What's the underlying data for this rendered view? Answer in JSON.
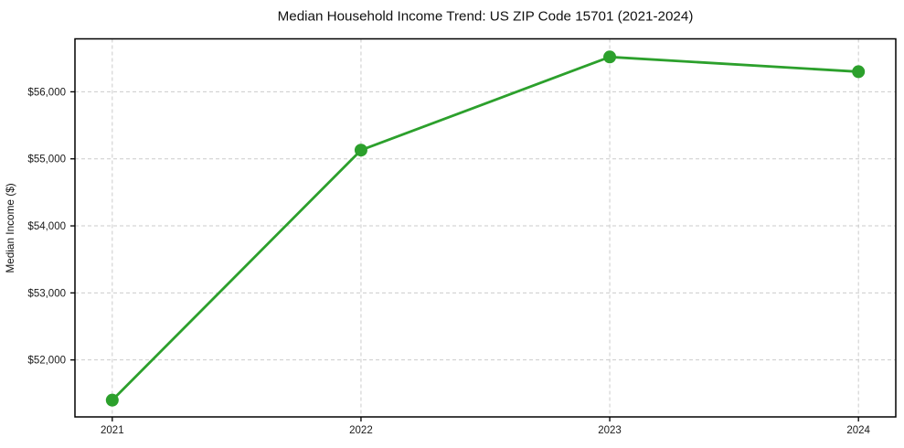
{
  "figure": {
    "title": "Median Household Income Trend: US ZIP Code 15701 (2021-2024)"
  },
  "chart_data": {
    "type": "line",
    "title": "Median Household Income Trend: US ZIP Code 15701 (2021-2024)",
    "xlabel": "",
    "ylabel": "Median Income ($)",
    "x": [
      2021,
      2022,
      2023,
      2024
    ],
    "values": [
      51400,
      55130,
      56520,
      56300
    ],
    "xticks": [
      {
        "value": 2021,
        "label": "2021"
      },
      {
        "value": 2022,
        "label": "2022"
      },
      {
        "value": 2023,
        "label": "2023"
      },
      {
        "value": 2024,
        "label": "2024"
      }
    ],
    "yticks": [
      {
        "value": 52000,
        "label": "$52,000"
      },
      {
        "value": 53000,
        "label": "$53,000"
      },
      {
        "value": 54000,
        "label": "$54,000"
      },
      {
        "value": 55000,
        "label": "$55,000"
      },
      {
        "value": 56000,
        "label": "$56,000"
      }
    ],
    "xlim": [
      2020.85,
      2024.15
    ],
    "ylim": [
      51150,
      56790
    ],
    "grid": true,
    "grid_style": "dashed",
    "legend": "none",
    "marker": "circle",
    "colors": {
      "line": "#2ca02c",
      "marker": "#2ca02c",
      "grid": "#cbcbcb",
      "spine": "#000000",
      "text": "#1a1a1a",
      "background": "#ffffff"
    }
  }
}
